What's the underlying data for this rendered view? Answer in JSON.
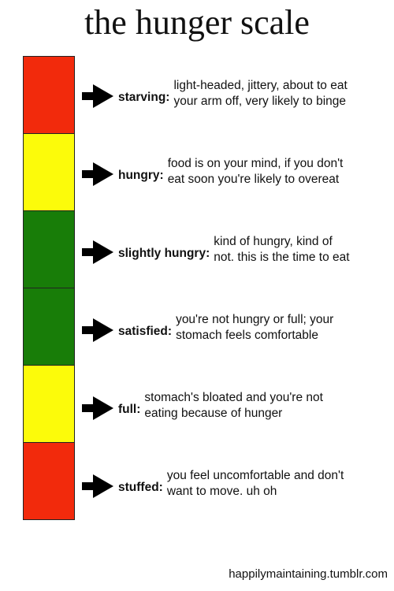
{
  "header": {
    "title": "the hunger scale"
  },
  "levels": [
    {
      "label": "starving:",
      "lines": [
        "light-headed, jittery, about to eat",
        "your arm off, very likely to binge"
      ],
      "color": "#f22a0c"
    },
    {
      "label": "hungry:",
      "lines": [
        "food is on your mind, if you don't",
        "eat soon you're likely to overeat"
      ],
      "color": "#fcfb0a"
    },
    {
      "label": "slightly hungry:",
      "lines": [
        "kind of hungry, kind of",
        "not. this is the time to eat"
      ],
      "color": "#187d08"
    },
    {
      "label": "satisfied:",
      "lines": [
        "you're not hungry or full; your",
        "stomach feels comfortable"
      ],
      "color": "#187d08"
    },
    {
      "label": "full:",
      "lines": [
        "stomach's bloated and you're not",
        "eating because of hunger"
      ],
      "color": "#fcfb0a"
    },
    {
      "label": "stuffed:",
      "lines": [
        "you feel uncomfortable and don't",
        "want to move. uh oh"
      ],
      "color": "#f22a0c"
    }
  ],
  "footer": {
    "credit": "happilymaintaining.tumblr.com"
  }
}
